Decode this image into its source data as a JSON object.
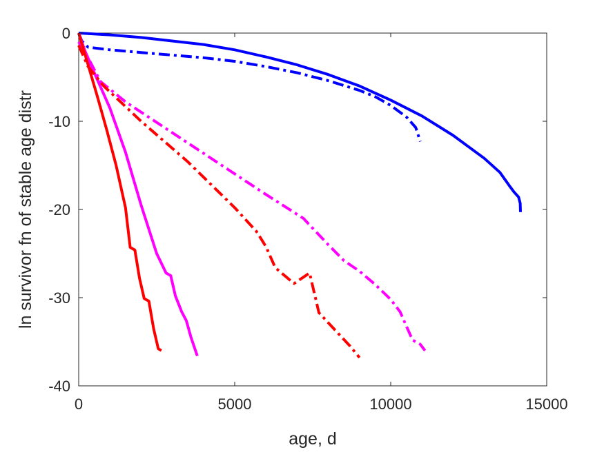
{
  "chart_data": {
    "type": "line",
    "title": "",
    "xlabel": "age, d",
    "ylabel": "ln survivor fn of stable age distr",
    "xlim": [
      0,
      15000
    ],
    "ylim": [
      -40,
      0
    ],
    "xticks": [
      0,
      5000,
      10000,
      15000
    ],
    "yticks": [
      0,
      -10,
      -20,
      -30,
      -40
    ],
    "xtick_labels": [
      "0",
      "5000",
      "10000",
      "15000"
    ],
    "ytick_labels": [
      "0",
      "-10",
      "-20",
      "-30",
      "-40"
    ],
    "grid": false,
    "series": [
      {
        "color": "#0000ff",
        "linestyle": "solid",
        "points": [
          [
            0,
            0
          ],
          [
            1000,
            -0.2
          ],
          [
            2000,
            -0.5
          ],
          [
            3000,
            -0.9
          ],
          [
            4000,
            -1.3
          ],
          [
            5000,
            -1.9
          ],
          [
            6000,
            -2.7
          ],
          [
            7000,
            -3.6
          ],
          [
            8000,
            -4.7
          ],
          [
            9000,
            -6.0
          ],
          [
            10000,
            -7.6
          ],
          [
            11000,
            -9.4
          ],
          [
            12000,
            -11.6
          ],
          [
            13000,
            -14.2
          ],
          [
            13500,
            -15.8
          ],
          [
            13800,
            -17.3
          ],
          [
            13950,
            -18.0
          ],
          [
            14100,
            -18.6
          ],
          [
            14150,
            -19.3
          ],
          [
            14160,
            -20.3
          ]
        ]
      },
      {
        "color": "#0000ff",
        "linestyle": "dashdot",
        "points": [
          [
            0,
            0
          ],
          [
            100,
            -0.9
          ],
          [
            300,
            -1.6
          ],
          [
            1000,
            -1.9
          ],
          [
            2000,
            -2.2
          ],
          [
            3000,
            -2.5
          ],
          [
            4000,
            -2.8
          ],
          [
            5000,
            -3.2
          ],
          [
            6000,
            -3.8
          ],
          [
            7000,
            -4.5
          ],
          [
            8000,
            -5.4
          ],
          [
            9000,
            -6.5
          ],
          [
            9500,
            -7.2
          ],
          [
            10000,
            -8.2
          ],
          [
            10500,
            -9.5
          ],
          [
            10800,
            -10.7
          ],
          [
            10950,
            -12.3
          ]
        ]
      },
      {
        "color": "#ff00ff",
        "linestyle": "solid",
        "points": [
          [
            0,
            0
          ],
          [
            200,
            -2.0
          ],
          [
            500,
            -4.5
          ],
          [
            1000,
            -8.5
          ],
          [
            1500,
            -13.5
          ],
          [
            2000,
            -19.5
          ],
          [
            2500,
            -25.0
          ],
          [
            2800,
            -27.2
          ],
          [
            2950,
            -27.5
          ],
          [
            3100,
            -29.8
          ],
          [
            3300,
            -31.6
          ],
          [
            3450,
            -32.6
          ],
          [
            3600,
            -34.5
          ],
          [
            3800,
            -36.6
          ]
        ]
      },
      {
        "color": "#ff00ff",
        "linestyle": "dashdot",
        "points": [
          [
            0,
            -1.0
          ],
          [
            300,
            -2.8
          ],
          [
            700,
            -5.5
          ],
          [
            1500,
            -7.8
          ],
          [
            3000,
            -11.3
          ],
          [
            4500,
            -14.8
          ],
          [
            6000,
            -18.3
          ],
          [
            7200,
            -21.0
          ],
          [
            8000,
            -24.0
          ],
          [
            8500,
            -25.8
          ],
          [
            9000,
            -27.0
          ],
          [
            9500,
            -28.5
          ],
          [
            10000,
            -30.2
          ],
          [
            10300,
            -31.6
          ],
          [
            10500,
            -33.2
          ],
          [
            10700,
            -34.8
          ],
          [
            10950,
            -35.3
          ],
          [
            11100,
            -36.0
          ]
        ]
      },
      {
        "color": "#ff0000",
        "linestyle": "solid",
        "points": [
          [
            0,
            0
          ],
          [
            300,
            -3.6
          ],
          [
            600,
            -7.2
          ],
          [
            900,
            -11.0
          ],
          [
            1200,
            -15.0
          ],
          [
            1500,
            -19.8
          ],
          [
            1650,
            -24.3
          ],
          [
            1800,
            -24.6
          ],
          [
            1950,
            -27.8
          ],
          [
            2100,
            -30.1
          ],
          [
            2250,
            -30.4
          ],
          [
            2400,
            -33.5
          ],
          [
            2550,
            -35.8
          ],
          [
            2650,
            -36.0
          ]
        ]
      },
      {
        "color": "#ff0000",
        "linestyle": "dashdot",
        "points": [
          [
            0,
            -1.4
          ],
          [
            300,
            -3.8
          ],
          [
            800,
            -6.0
          ],
          [
            2000,
            -10.0
          ],
          [
            3500,
            -14.6
          ],
          [
            5000,
            -19.8
          ],
          [
            5700,
            -22.5
          ],
          [
            6000,
            -24.2
          ],
          [
            6300,
            -26.6
          ],
          [
            6900,
            -28.4
          ],
          [
            7400,
            -27.2
          ],
          [
            7700,
            -31.7
          ],
          [
            8200,
            -33.6
          ],
          [
            8700,
            -35.5
          ],
          [
            9000,
            -36.8
          ]
        ]
      }
    ]
  }
}
